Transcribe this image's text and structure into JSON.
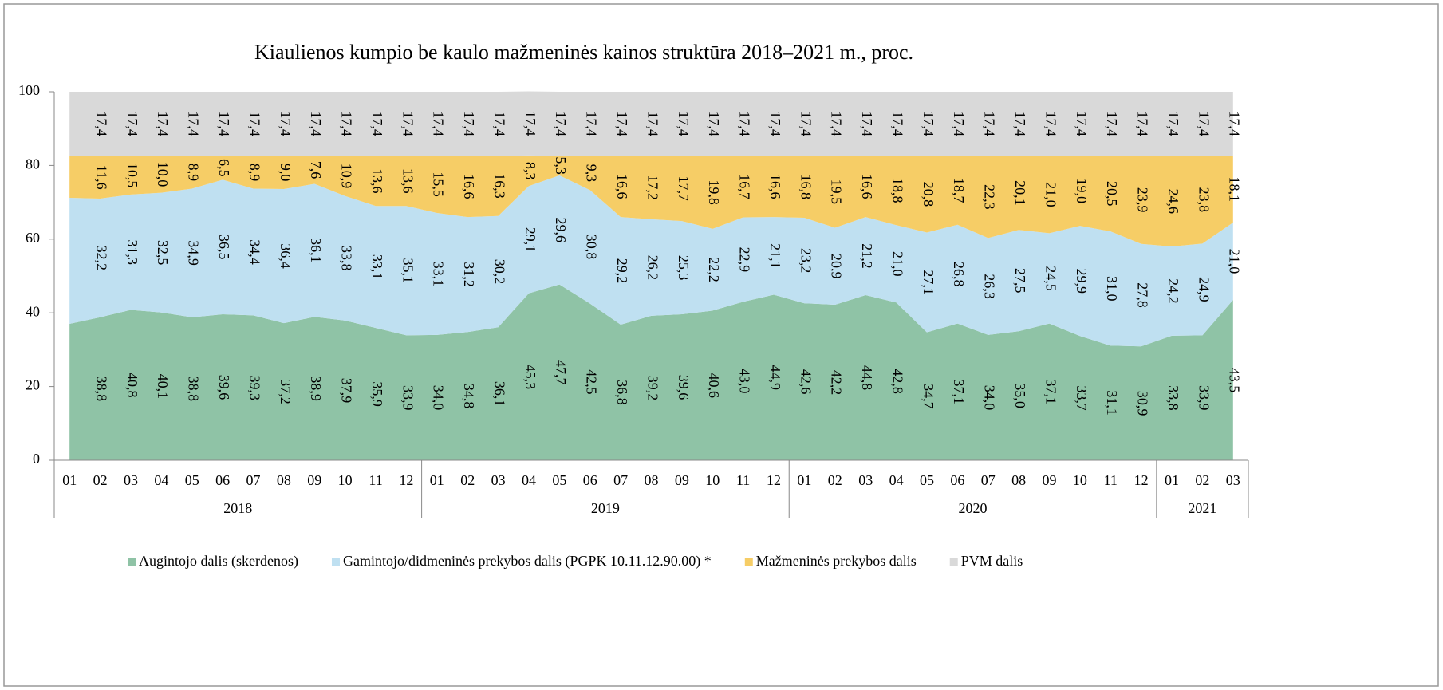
{
  "chart_data": {
    "type": "stacked_area",
    "title": "Kiaulienos kumpio be kaulo mažmeninės kainos struktūra 2018–2021 m., proc.",
    "categories": [
      "01",
      "02",
      "03",
      "04",
      "05",
      "06",
      "07",
      "08",
      "09",
      "10",
      "11",
      "12",
      "01",
      "02",
      "03",
      "04",
      "05",
      "06",
      "07",
      "08",
      "09",
      "10",
      "11",
      "12",
      "01",
      "02",
      "03",
      "04",
      "05",
      "06",
      "07",
      "08",
      "09",
      "10",
      "11",
      "12",
      "01",
      "02",
      "03"
    ],
    "year_groups": [
      {
        "name": "2018",
        "count": 12
      },
      {
        "name": "2019",
        "count": 12
      },
      {
        "name": "2020",
        "count": 12
      },
      {
        "name": "2021",
        "count": 3
      }
    ],
    "ylim": [
      0,
      100
    ],
    "yticks": [
      0,
      20,
      40,
      60,
      80,
      100
    ],
    "legend": "bottom",
    "series": [
      {
        "name": "Augintojo dalis (skerdenos)",
        "color": "#8fc3a6",
        "values": [
          37.0,
          38.8,
          40.8,
          40.1,
          38.8,
          39.6,
          39.3,
          37.2,
          38.9,
          37.9,
          35.9,
          33.9,
          34.0,
          34.8,
          36.1,
          45.3,
          47.7,
          42.5,
          36.8,
          39.2,
          39.6,
          40.6,
          43.0,
          44.9,
          42.6,
          42.2,
          44.8,
          42.8,
          34.7,
          37.1,
          34.0,
          35.0,
          37.1,
          33.7,
          31.1,
          30.9,
          33.8,
          33.9,
          43.5
        ],
        "value_labels": [
          null,
          "38,8",
          "40,8",
          "40,1",
          "38,8",
          "39,6",
          "39,3",
          "37,2",
          "38,9",
          "37,9",
          "35,9",
          "33,9",
          "34,0",
          "34,8",
          "36,1",
          "45,3",
          "47,7",
          "42,5",
          "36,8",
          "39,2",
          "39,6",
          "40,6",
          "43,0",
          "44,9",
          "42,6",
          "42,2",
          "44,8",
          "42,8",
          "34,7",
          "37,1",
          "34,0",
          "35,0",
          "37,1",
          "33,7",
          "31,1",
          "30,9",
          "33,8",
          "33,9",
          "43,5"
        ]
      },
      {
        "name": "Gamintojo/didmeninės prekybos dalis (PGPK 10.11.12.90.00) *",
        "color": "#bfe0f1",
        "values": [
          34.2,
          32.2,
          31.3,
          32.5,
          34.9,
          36.5,
          34.4,
          36.4,
          36.1,
          33.8,
          33.1,
          35.1,
          33.1,
          31.2,
          30.2,
          29.1,
          29.6,
          30.8,
          29.2,
          26.2,
          25.3,
          22.2,
          22.9,
          21.1,
          23.2,
          20.9,
          21.2,
          21.0,
          27.1,
          26.8,
          26.3,
          27.5,
          24.5,
          29.9,
          31.0,
          27.8,
          24.2,
          24.9,
          21.0
        ],
        "value_labels": [
          null,
          "32,2",
          "31,3",
          "32,5",
          "34,9",
          "36,5",
          "34,4",
          "36,4",
          "36,1",
          "33,8",
          "33,1",
          "35,1",
          "33,1",
          "31,2",
          "30,2",
          "29,1",
          "29,6",
          "30,8",
          "29,2",
          "26,2",
          "25,3",
          "22,2",
          "22,9",
          "21,1",
          "23,2",
          "20,9",
          "21,2",
          "21,0",
          "27,1",
          "26,8",
          "26,3",
          "27,5",
          "24,5",
          "29,9",
          "31,0",
          "27,8",
          "24,2",
          "24,9",
          "21,0"
        ]
      },
      {
        "name": "Mažmeninės prekybos dalis",
        "color": "#f6cd66",
        "values": [
          11.4,
          11.6,
          10.5,
          10.0,
          8.9,
          6.5,
          8.9,
          9.0,
          7.6,
          10.9,
          13.6,
          13.6,
          15.5,
          16.6,
          16.3,
          8.3,
          5.3,
          9.3,
          16.6,
          17.2,
          17.7,
          19.8,
          16.7,
          16.6,
          16.8,
          19.5,
          16.6,
          18.8,
          20.8,
          18.7,
          22.3,
          20.1,
          21.0,
          19.0,
          20.5,
          23.9,
          24.6,
          23.8,
          18.1
        ],
        "value_labels": [
          null,
          "11,6",
          "10,5",
          "10,0",
          "8,9",
          "6,5",
          "8,9",
          "9,0",
          "7,6",
          "10,9",
          "13,6",
          "13,6",
          "15,5",
          "16,6",
          "16,3",
          "8,3",
          "5,3",
          "9,3",
          "16,6",
          "17,2",
          "17,7",
          "19,8",
          "16,7",
          "16,6",
          "16,8",
          "19,5",
          "16,6",
          "18,8",
          "20,8",
          "18,7",
          "22,3",
          "20,1",
          "21,0",
          "19,0",
          "20,5",
          "23,9",
          "24,6",
          "23,8",
          "18,1"
        ]
      },
      {
        "name": "PVM dalis",
        "color": "#d9d9d9",
        "values": [
          17.4,
          17.4,
          17.4,
          17.4,
          17.4,
          17.4,
          17.4,
          17.4,
          17.4,
          17.4,
          17.4,
          17.4,
          17.4,
          17.4,
          17.4,
          17.4,
          17.4,
          17.4,
          17.4,
          17.4,
          17.4,
          17.4,
          17.4,
          17.4,
          17.4,
          17.4,
          17.4,
          17.4,
          17.4,
          17.4,
          17.4,
          17.4,
          17.4,
          17.4,
          17.4,
          17.4,
          17.4,
          17.4,
          17.4
        ],
        "value_labels": [
          null,
          "17,4",
          "17,4",
          "17,4",
          "17,4",
          "17,4",
          "17,4",
          "17,4",
          "17,4",
          "17,4",
          "17,4",
          "17,4",
          "17,4",
          "17,4",
          "17,4",
          "17,4",
          "17,4",
          "17,4",
          "17,4",
          "17,4",
          "17,4",
          "17,4",
          "17,4",
          "17,4",
          "17,4",
          "17,4",
          "17,4",
          "17,4",
          "17,4",
          "17,4",
          "17,4",
          "17,4",
          "17,4",
          "17,4",
          "17,4",
          "17,4",
          "17,4",
          "17,4",
          "17,4"
        ]
      }
    ]
  }
}
